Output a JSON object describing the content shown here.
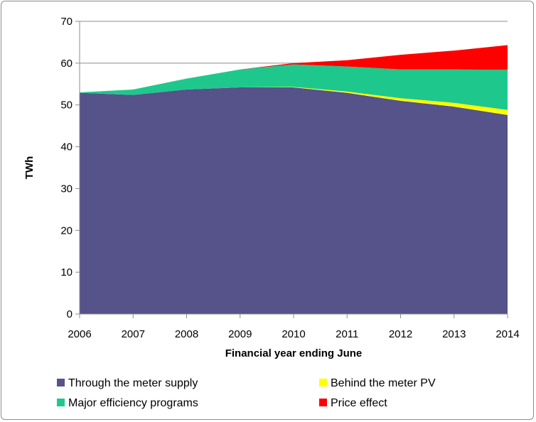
{
  "chart_data": {
    "type": "area",
    "stacked": true,
    "title": "",
    "xlabel": "Financial year ending June",
    "ylabel": "TWh",
    "ylim": [
      0,
      70
    ],
    "yticks": [
      0,
      10,
      20,
      30,
      40,
      50,
      60,
      70
    ],
    "categories": [
      "2006",
      "2007",
      "2008",
      "2009",
      "2010",
      "2011",
      "2012",
      "2013",
      "2014"
    ],
    "gridlines": "horizontal",
    "legend_position": "bottom",
    "series": [
      {
        "name": "Through the meter supply",
        "color": "#56528a",
        "values": [
          52.9,
          52.4,
          53.7,
          54.2,
          54.2,
          52.9,
          51.0,
          49.6,
          47.6
        ]
      },
      {
        "name": "Behind the meter PV",
        "color": "#ffff00",
        "values": [
          0.0,
          0.0,
          0.0,
          0.0,
          0.1,
          0.3,
          0.6,
          0.9,
          1.2
        ]
      },
      {
        "name": "Major efficiency programs",
        "color": "#1ec88c",
        "values": [
          0.1,
          1.3,
          2.6,
          4.3,
          5.4,
          6.0,
          6.9,
          8.0,
          9.6
        ]
      },
      {
        "name": "Price effect",
        "color": "#ff0000",
        "values": [
          0.0,
          0.0,
          0.0,
          0.0,
          0.3,
          1.5,
          3.5,
          4.5,
          5.9
        ]
      }
    ]
  }
}
